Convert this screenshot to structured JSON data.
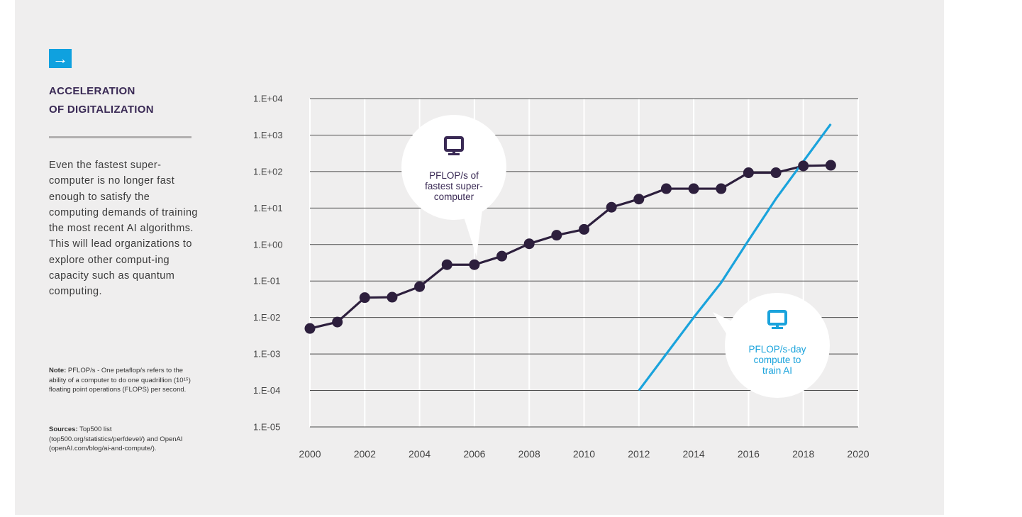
{
  "sidebar": {
    "arrow_glyph": "→",
    "title_line1": "ACCELERATION",
    "title_line2": "OF DIGITALIZATION",
    "body": "Even the fastest super-computer is no longer fast enough to satisfy the computing demands of training the most recent AI algorithms. This will lead organizations to explore other comput-ing capacity such as quantum computing.",
    "note_label": "Note:",
    "note_text": "PFLOP/s - One petaflop/s refers to the ability of a computer to do one quadrillion (10¹⁵) floating point operations (FLOPS) per second.",
    "sources_label": "Sources:",
    "sources_text": "Top500 list (top500.org/statistics/perfdevel/) and OpenAI (openAI.com/blog/ai-and-compute/)."
  },
  "colors": {
    "accent": "#0fa1df",
    "series_super": "#2d1f3d",
    "series_ai": "#1aa3dc",
    "title": "#3a2a55",
    "panel_bg": "#efeeee"
  },
  "chart_data": {
    "type": "line",
    "scale": "log",
    "xlim": [
      2000,
      2020
    ],
    "ylim": [
      1e-05,
      10000
    ],
    "x_ticks": [
      2000,
      2002,
      2004,
      2006,
      2008,
      2010,
      2012,
      2014,
      2016,
      2018,
      2020
    ],
    "y_ticks": [
      {
        "value": 10000,
        "label": "1.E+04"
      },
      {
        "value": 1000,
        "label": "1.E+03"
      },
      {
        "value": 100,
        "label": "1.E+02"
      },
      {
        "value": 10,
        "label": "1.E+01"
      },
      {
        "value": 1,
        "label": "1.E+00"
      },
      {
        "value": 0.1,
        "label": "1.E-01"
      },
      {
        "value": 0.01,
        "label": "1.E-02"
      },
      {
        "value": 0.001,
        "label": "1.E-03"
      },
      {
        "value": 0.0001,
        "label": "1.E-04"
      },
      {
        "value": 1e-05,
        "label": "1.E-05"
      }
    ],
    "grid": true,
    "series": [
      {
        "key": "super",
        "x": [
          2000,
          2001,
          2002,
          2003,
          2004,
          2005,
          2006,
          2007,
          2008,
          2009,
          2010,
          2011,
          2012,
          2013,
          2014,
          2015,
          2016,
          2017,
          2018,
          2019
        ],
        "values": [
          0.005,
          0.0075,
          0.035,
          0.036,
          0.07,
          0.28,
          0.28,
          0.48,
          1.05,
          1.8,
          2.6,
          10.5,
          17.6,
          33.9,
          33.9,
          33.9,
          93,
          93,
          143,
          148.6
        ]
      },
      {
        "key": "ai",
        "x": [
          2012,
          2013,
          2014,
          2015,
          2016,
          2017,
          2019
        ],
        "values": [
          0.0001,
          0.001,
          0.01,
          0.09,
          1.3,
          18,
          2000
        ]
      }
    ],
    "callouts": [
      {
        "series": "super",
        "label": "PFLOP/s of fastest super-computer",
        "icon": "monitor-icon"
      },
      {
        "series": "ai",
        "label": "PFLOP/s-day compute to train AI",
        "icon": "monitor-icon"
      }
    ]
  }
}
